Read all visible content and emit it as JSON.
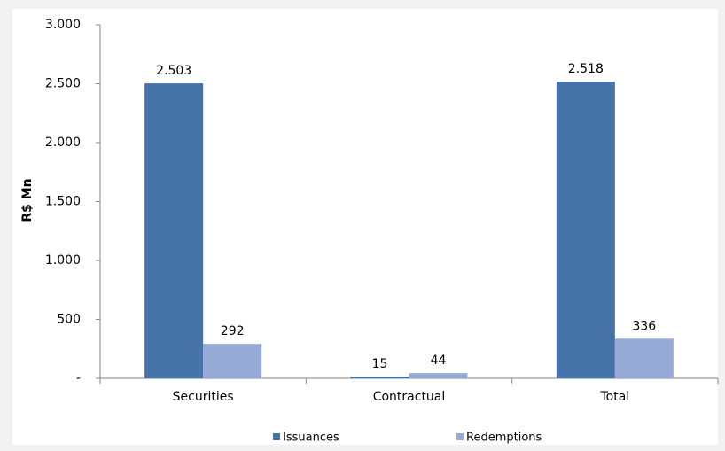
{
  "chart_data": {
    "type": "bar",
    "y_label": "R$ Mn",
    "categories": [
      "Securities",
      "Contractual",
      "Total"
    ],
    "series": [
      {
        "name": "Issuances",
        "color": "#4572a7",
        "values": [
          2503,
          15,
          2518
        ],
        "value_labels": [
          "2.503",
          "15",
          "2.518"
        ]
      },
      {
        "name": "Redemptions",
        "color": "#95abd5",
        "values": [
          292,
          44,
          336
        ]
      }
    ],
    "ylim": [
      0,
      3000
    ],
    "yticks": [
      {
        "value": 0,
        "label": "-"
      },
      500,
      {
        "value": 1000,
        "label": "1.000"
      },
      {
        "value": 1500,
        "label": "1.500"
      },
      {
        "value": 2000,
        "label": "2.000"
      },
      {
        "value": 2500,
        "label": "2.500"
      },
      {
        "value": 3000,
        "label": "3.000"
      }
    ],
    "grid": false,
    "legend": "bottom"
  }
}
